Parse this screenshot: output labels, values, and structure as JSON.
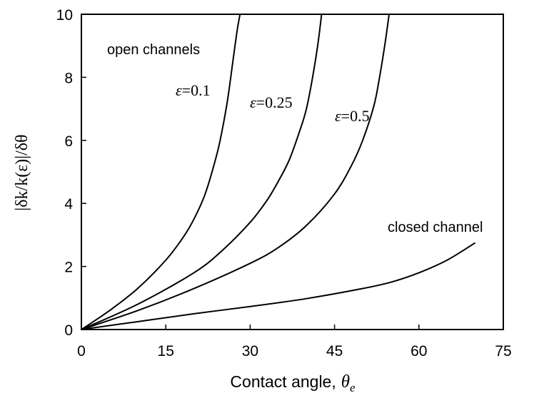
{
  "chart_data": {
    "type": "line",
    "title": "",
    "xlabel": "Contact angle,",
    "xlabel_symbol": "θ",
    "xlabel_subscript": "e",
    "ylabel": "|δk/k(ε)|/δθ",
    "xlim": [
      0,
      75
    ],
    "ylim": [
      0,
      10
    ],
    "x_ticks": [
      "0",
      "15",
      "30",
      "45",
      "60",
      "75"
    ],
    "y_ticks": [
      "0",
      "2",
      "4",
      "6",
      "8",
      "10"
    ],
    "grid": false,
    "legend": "none",
    "series": [
      {
        "name": "ε=0.1",
        "x": [
          0,
          5,
          10,
          15,
          18,
          20,
          22,
          24,
          25,
          26,
          27,
          27.7,
          28.2
        ],
        "y": [
          0,
          0.6,
          1.3,
          2.2,
          2.9,
          3.5,
          4.3,
          5.5,
          6.3,
          7.3,
          8.6,
          9.5,
          10
        ]
      },
      {
        "name": "ε=0.25",
        "x": [
          0,
          10,
          20,
          25,
          30,
          33,
          35,
          37,
          39,
          40,
          41,
          42,
          42.7
        ],
        "y": [
          0,
          0.8,
          1.8,
          2.5,
          3.4,
          4.1,
          4.7,
          5.4,
          6.4,
          7.0,
          7.9,
          9.0,
          10
        ]
      },
      {
        "name": "ε=0.5",
        "x": [
          0,
          10,
          20,
          30,
          35,
          40,
          45,
          48,
          50,
          52,
          53,
          54,
          54.7
        ],
        "y": [
          0,
          0.6,
          1.3,
          2.1,
          2.6,
          3.3,
          4.3,
          5.2,
          6.0,
          7.1,
          8.0,
          9.1,
          10
        ]
      },
      {
        "name": "closed channel",
        "x": [
          0,
          10,
          20,
          30,
          40,
          50,
          55,
          60,
          65,
          70
        ],
        "y": [
          0,
          0.25,
          0.5,
          0.73,
          0.98,
          1.3,
          1.5,
          1.8,
          2.2,
          2.75
        ]
      }
    ],
    "annotations": {
      "open": "open channels",
      "closed": "closed channel",
      "eps_symbol": "ε",
      "eps01": "=0.1",
      "eps025": "=0.25",
      "eps05": "=0.5"
    }
  }
}
